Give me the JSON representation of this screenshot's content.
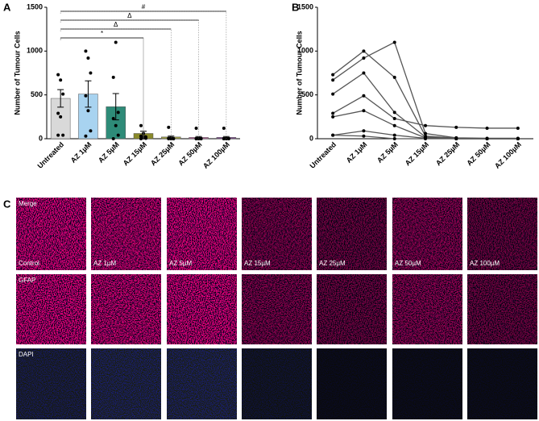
{
  "panel_labels": [
    "A",
    "B",
    "C"
  ],
  "chart_data": [
    {
      "type": "bar",
      "categories": [
        "Untreated",
        "AZ 1µM",
        "AZ 5µM",
        "AZ 15µM",
        "AZ 25µM",
        "AZ 50µM",
        "AZ 100µM"
      ],
      "values": [
        460,
        510,
        365,
        60,
        20,
        15,
        15
      ],
      "errors": [
        100,
        150,
        150,
        25,
        10,
        10,
        10
      ],
      "colors": [
        "#d9d9d9",
        "#a8d3f0",
        "#2e8b78",
        "#8a8a2a",
        "#9a9a4a",
        "#b06a9a",
        "#7a4a8a"
      ],
      "ylabel": "Number of Tumour Cells",
      "ylim": [
        0,
        1500
      ],
      "yticks": [
        0,
        500,
        1000,
        1500
      ],
      "annotations": [
        "*",
        "Δ",
        "Δ",
        "#"
      ]
    },
    {
      "type": "line",
      "categories": [
        "Untreated",
        "AZ 1µM",
        "AZ 5µM",
        "AZ 15µM",
        "AZ 25µM",
        "AZ 50µM",
        "AZ 100µM"
      ],
      "color": "#555555",
      "series": [
        {
          "values": [
            730,
            1000,
            700,
            30,
            5,
            0,
            0
          ]
        },
        {
          "values": [
            670,
            920,
            1100,
            60,
            10,
            5,
            5
          ]
        },
        {
          "values": [
            510,
            750,
            300,
            20,
            0,
            0,
            0
          ]
        },
        {
          "values": [
            290,
            490,
            230,
            150,
            130,
            120,
            120
          ]
        },
        {
          "values": [
            250,
            320,
            150,
            10,
            0,
            0,
            0
          ]
        },
        {
          "values": [
            40,
            90,
            40,
            5,
            0,
            0,
            0
          ]
        },
        {
          "values": [
            40,
            30,
            0,
            0,
            0,
            0,
            0
          ]
        }
      ],
      "ylabel": "Number of Tumour Cells",
      "ylim": [
        0,
        1500
      ],
      "yticks": [
        0,
        500,
        1000,
        1500
      ]
    }
  ],
  "images": {
    "rows": [
      "Merge",
      "GFAP",
      "DAPI"
    ],
    "columns": [
      "Control",
      "AZ 1µM",
      "AZ 5µM",
      "AZ 15µM",
      "AZ 25µM",
      "AZ 50µM",
      "AZ 100µM"
    ]
  }
}
